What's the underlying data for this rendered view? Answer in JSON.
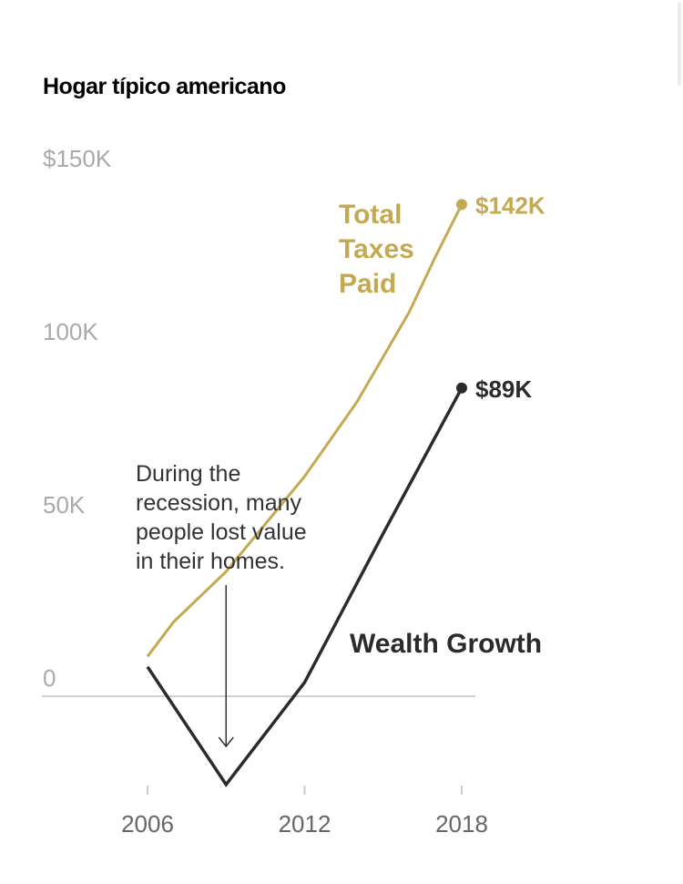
{
  "chart_data": {
    "type": "line",
    "title": "Hogar típico americano",
    "xlabel": "",
    "ylabel": "",
    "x_ticks": [
      2006,
      2012,
      2018
    ],
    "x_tick_labels": [
      "2006",
      "2012",
      "2018"
    ],
    "y_ticks": [
      0,
      50,
      100,
      150
    ],
    "y_tick_labels": [
      "0",
      "50K",
      "100K",
      "$150K"
    ],
    "xlim": [
      2006,
      2018
    ],
    "ylim": [
      -30,
      150
    ],
    "grid": "zero line only",
    "series": [
      {
        "name": "Total Taxes Paid",
        "label_lines": [
          "Total",
          "Taxes",
          "Paid"
        ],
        "color": "#c4a951",
        "end_label": "$142K",
        "x": [
          2006,
          2007,
          2009,
          2012,
          2014,
          2016,
          2017,
          2018
        ],
        "values": [
          11.5,
          21.5,
          36,
          63.5,
          85,
          111,
          127,
          142
        ]
      },
      {
        "name": "Wealth Growth",
        "label_lines": [
          "Wealth Growth"
        ],
        "color": "#2b2b2b",
        "end_label": "$89K",
        "x": [
          2006,
          2009,
          2012,
          2015,
          2018
        ],
        "values": [
          8.5,
          -25.5,
          4,
          47,
          89
        ]
      }
    ],
    "annotations": [
      {
        "text_lines": [
          "During the",
          "recession, many",
          "people lost value",
          "in their homes."
        ],
        "arrow_x": 2009,
        "arrow_from": 32,
        "arrow_to": -15
      }
    ]
  }
}
